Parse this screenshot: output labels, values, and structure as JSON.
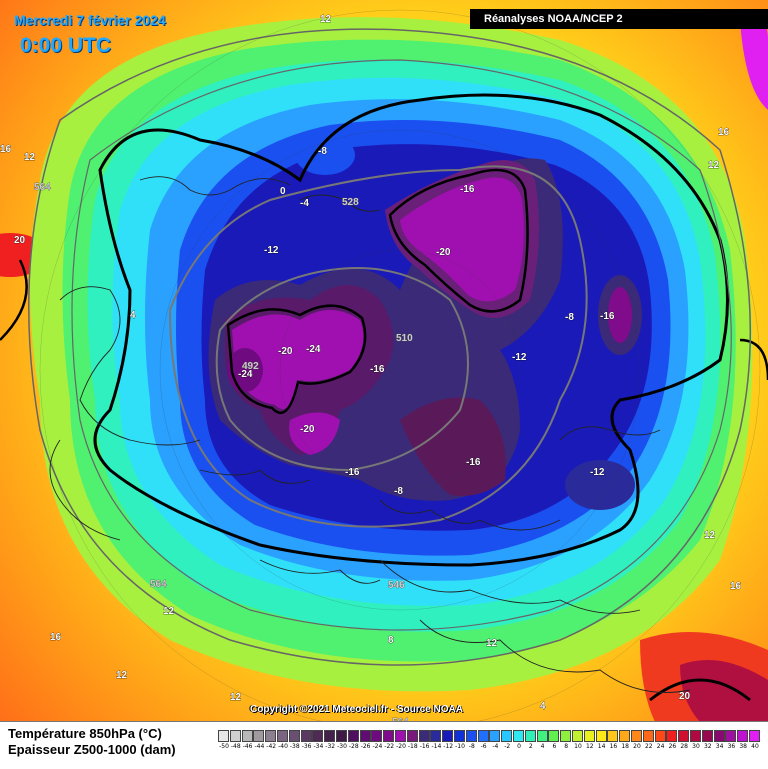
{
  "title": {
    "date": "Mercredi 7 février 2024",
    "time": "0:00 UTC"
  },
  "source": "Réanalyses NOAA/NCEP 2",
  "copyright": "Copyright ©2021 Meteociel.fr - Source NOAA",
  "legend": {
    "line1": "Température 850hPa (°C)",
    "line2": "Epaisseur Z500-1000 (dam)",
    "scale": [
      {
        "v": "-50",
        "c": "#e8e8e8"
      },
      {
        "v": "-48",
        "c": "#cfcfcf"
      },
      {
        "v": "-46",
        "c": "#b8b8b8"
      },
      {
        "v": "-44",
        "c": "#a09aa0"
      },
      {
        "v": "-42",
        "c": "#8c8090"
      },
      {
        "v": "-40",
        "c": "#7a6680"
      },
      {
        "v": "-38",
        "c": "#6a5070"
      },
      {
        "v": "-36",
        "c": "#5a3a60"
      },
      {
        "v": "-34",
        "c": "#4e2a55"
      },
      {
        "v": "-32",
        "c": "#46204c"
      },
      {
        "v": "-30",
        "c": "#3e1a44"
      },
      {
        "v": "-28",
        "c": "#501060"
      },
      {
        "v": "-26",
        "c": "#600c70"
      },
      {
        "v": "-24",
        "c": "#700a80"
      },
      {
        "v": "-22",
        "c": "#800c8c"
      },
      {
        "v": "-20",
        "c": "#a010b0"
      },
      {
        "v": "-18",
        "c": "#7a1a7a"
      },
      {
        "v": "-16",
        "c": "#3a2a78"
      },
      {
        "v": "-14",
        "c": "#2a2a9a"
      },
      {
        "v": "-12",
        "c": "#1a1ab8"
      },
      {
        "v": "-10",
        "c": "#1230d8"
      },
      {
        "v": "-8",
        "c": "#1a50f0"
      },
      {
        "v": "-6",
        "c": "#2070ff"
      },
      {
        "v": "-4",
        "c": "#2aa0ff"
      },
      {
        "v": "-2",
        "c": "#28c8ff"
      },
      {
        "v": "0",
        "c": "#30e8f0"
      },
      {
        "v": "2",
        "c": "#30f0b8"
      },
      {
        "v": "4",
        "c": "#40f080"
      },
      {
        "v": "6",
        "c": "#60f050"
      },
      {
        "v": "8",
        "c": "#90f040"
      },
      {
        "v": "10",
        "c": "#c0f030"
      },
      {
        "v": "12",
        "c": "#e8f020"
      },
      {
        "v": "14",
        "c": "#ffe818"
      },
      {
        "v": "16",
        "c": "#ffc818"
      },
      {
        "v": "18",
        "c": "#ffa818"
      },
      {
        "v": "20",
        "c": "#ff8818"
      },
      {
        "v": "22",
        "c": "#ff6818"
      },
      {
        "v": "24",
        "c": "#ff4818"
      },
      {
        "v": "26",
        "c": "#f02020"
      },
      {
        "v": "28",
        "c": "#d01030"
      },
      {
        "v": "30",
        "c": "#b00840"
      },
      {
        "v": "32",
        "c": "#980850"
      },
      {
        "v": "34",
        "c": "#880a70"
      },
      {
        "v": "36",
        "c": "#a010a0"
      },
      {
        "v": "38",
        "c": "#c010d0"
      },
      {
        "v": "40",
        "c": "#e020f0"
      }
    ]
  },
  "map_labels": {
    "temperature": [
      "12",
      "16",
      "12",
      "20",
      "4",
      "-8",
      "0",
      "-4",
      "-12",
      "-16",
      "-20",
      "-16",
      "-24",
      "-20",
      "-24",
      "-20",
      "-16",
      "-12",
      "-8",
      "-16",
      "-16",
      "-12",
      "-8",
      "-12",
      "12",
      "16",
      "12",
      "16",
      "20",
      "12",
      "8",
      "4",
      "12",
      "-12",
      "12",
      "16",
      "12"
    ],
    "thickness": [
      "528",
      "564",
      "510",
      "492",
      "564",
      "546",
      "564"
    ]
  }
}
